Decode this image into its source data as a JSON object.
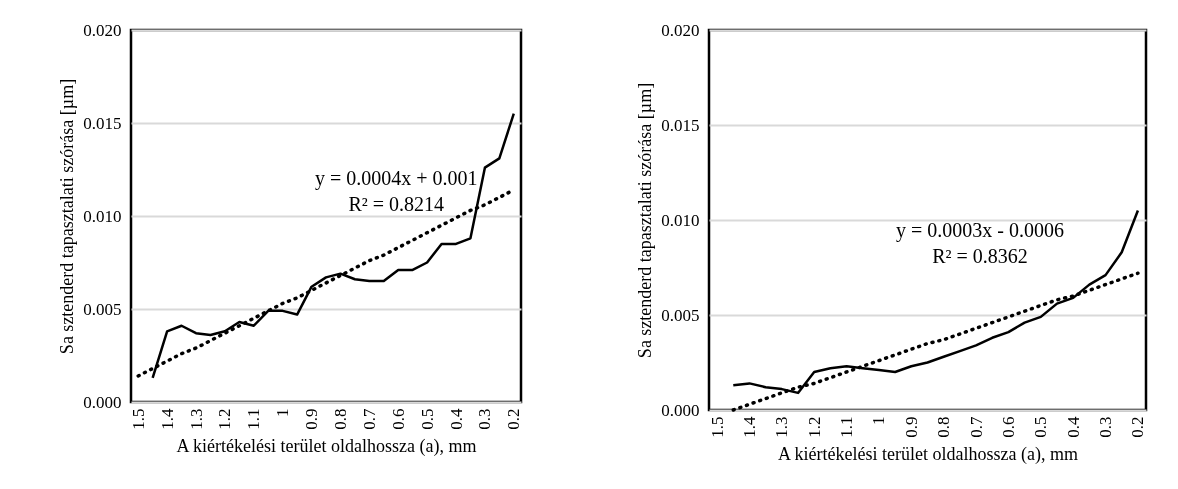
{
  "chart_data": [
    {
      "type": "line",
      "xlabel": "A kiértékelési terület oldalhossza (a), mm",
      "ylabel": "Sa sztenderd tapasztalati szórása [µm]",
      "categories": [
        "1.5",
        null,
        "1.4",
        null,
        "1.3",
        null,
        "1.2",
        null,
        "1.1",
        null,
        "1",
        null,
        "0.9",
        null,
        "0.8",
        null,
        "0.7",
        null,
        "0.6",
        null,
        "0.5",
        null,
        "0.4",
        null,
        "0.3",
        null,
        "0.2"
      ],
      "series": [
        {
          "color": "#000000",
          "line_style": "solid",
          "values": [
            null,
            0.0013,
            0.0038,
            0.0041,
            0.0037,
            0.0036,
            0.0038,
            0.0043,
            0.0041,
            0.0049,
            0.0049,
            0.0047,
            0.0062,
            0.0067,
            0.0069,
            0.0066,
            0.0065,
            0.0065,
            0.0071,
            0.0071,
            0.0075,
            0.0085,
            0.0085,
            0.0088,
            0.0126,
            0.0131,
            0.0155
          ]
        },
        {
          "color": "#000000",
          "line_style": "dotted",
          "values": [
            0.0014,
            0.0018,
            0.0022,
            0.0026,
            0.0029,
            0.0033,
            0.0037,
            0.0041,
            0.0045,
            0.0049,
            0.0053,
            0.0056,
            0.006,
            0.0064,
            0.0068,
            0.0072,
            0.0076,
            0.0079,
            0.0083,
            0.0087,
            0.0091,
            0.0095,
            0.0099,
            0.0103,
            0.0106,
            0.011,
            0.0114
          ]
        }
      ],
      "ylim": [
        0,
        0.02
      ],
      "yticks": [
        {
          "value": 0,
          "label": "0.000"
        },
        {
          "value": 0.005,
          "label": "0.005"
        },
        {
          "value": 0.01,
          "label": "0.010"
        },
        {
          "value": 0.015,
          "label": "0.015"
        },
        {
          "value": 0.02,
          "label": "0.020"
        }
      ],
      "grid": "y",
      "annotations": [
        "y = 0.0004x + 0.001",
        "R² = 0.8214"
      ]
    },
    {
      "type": "line",
      "xlabel": "A kiértékelési terület oldalhossza (a), mm",
      "ylabel": "Sa sztenderd tapasztalati szórása [µm]",
      "categories": [
        "1.5",
        null,
        "1.4",
        null,
        "1.3",
        null,
        "1.2",
        null,
        "1.1",
        null,
        "1",
        null,
        "0.9",
        null,
        "0.8",
        null,
        "0.7",
        null,
        "0.6",
        null,
        "0.5",
        null,
        "0.4",
        null,
        "0.3",
        null,
        "0.2"
      ],
      "series": [
        {
          "color": "#000000",
          "line_style": "solid",
          "values": [
            null,
            0.0013,
            0.0014,
            0.0012,
            0.0011,
            0.0009,
            0.002,
            0.0022,
            0.0023,
            0.0022,
            0.0021,
            0.002,
            0.0023,
            0.0025,
            0.0028,
            0.0031,
            0.0034,
            0.0038,
            0.0041,
            0.0046,
            0.0049,
            0.0056,
            0.0059,
            0.0066,
            0.0071,
            0.0083,
            0.0105
          ]
        },
        {
          "color": "#000000",
          "line_style": "dotted",
          "values": [
            null,
            0.0,
            0.0003,
            0.0006,
            0.0009,
            0.0012,
            0.0014,
            0.0017,
            0.002,
            0.0023,
            0.0026,
            0.0029,
            0.0032,
            0.0035,
            0.0037,
            0.004,
            0.0043,
            0.0046,
            0.0049,
            0.0052,
            0.0055,
            0.0058,
            0.006,
            0.0063,
            0.0066,
            0.0069,
            0.0072
          ]
        }
      ],
      "ylim": [
        0,
        0.02
      ],
      "yticks": [
        {
          "value": 0,
          "label": "0.000"
        },
        {
          "value": 0.005,
          "label": "0.005"
        },
        {
          "value": 0.01,
          "label": "0.010"
        },
        {
          "value": 0.015,
          "label": "0.015"
        },
        {
          "value": 0.02,
          "label": "0.020"
        }
      ],
      "grid": "y",
      "annotations": [
        "y = 0.0003x - 0.0006",
        "R² = 0.8362"
      ]
    }
  ]
}
